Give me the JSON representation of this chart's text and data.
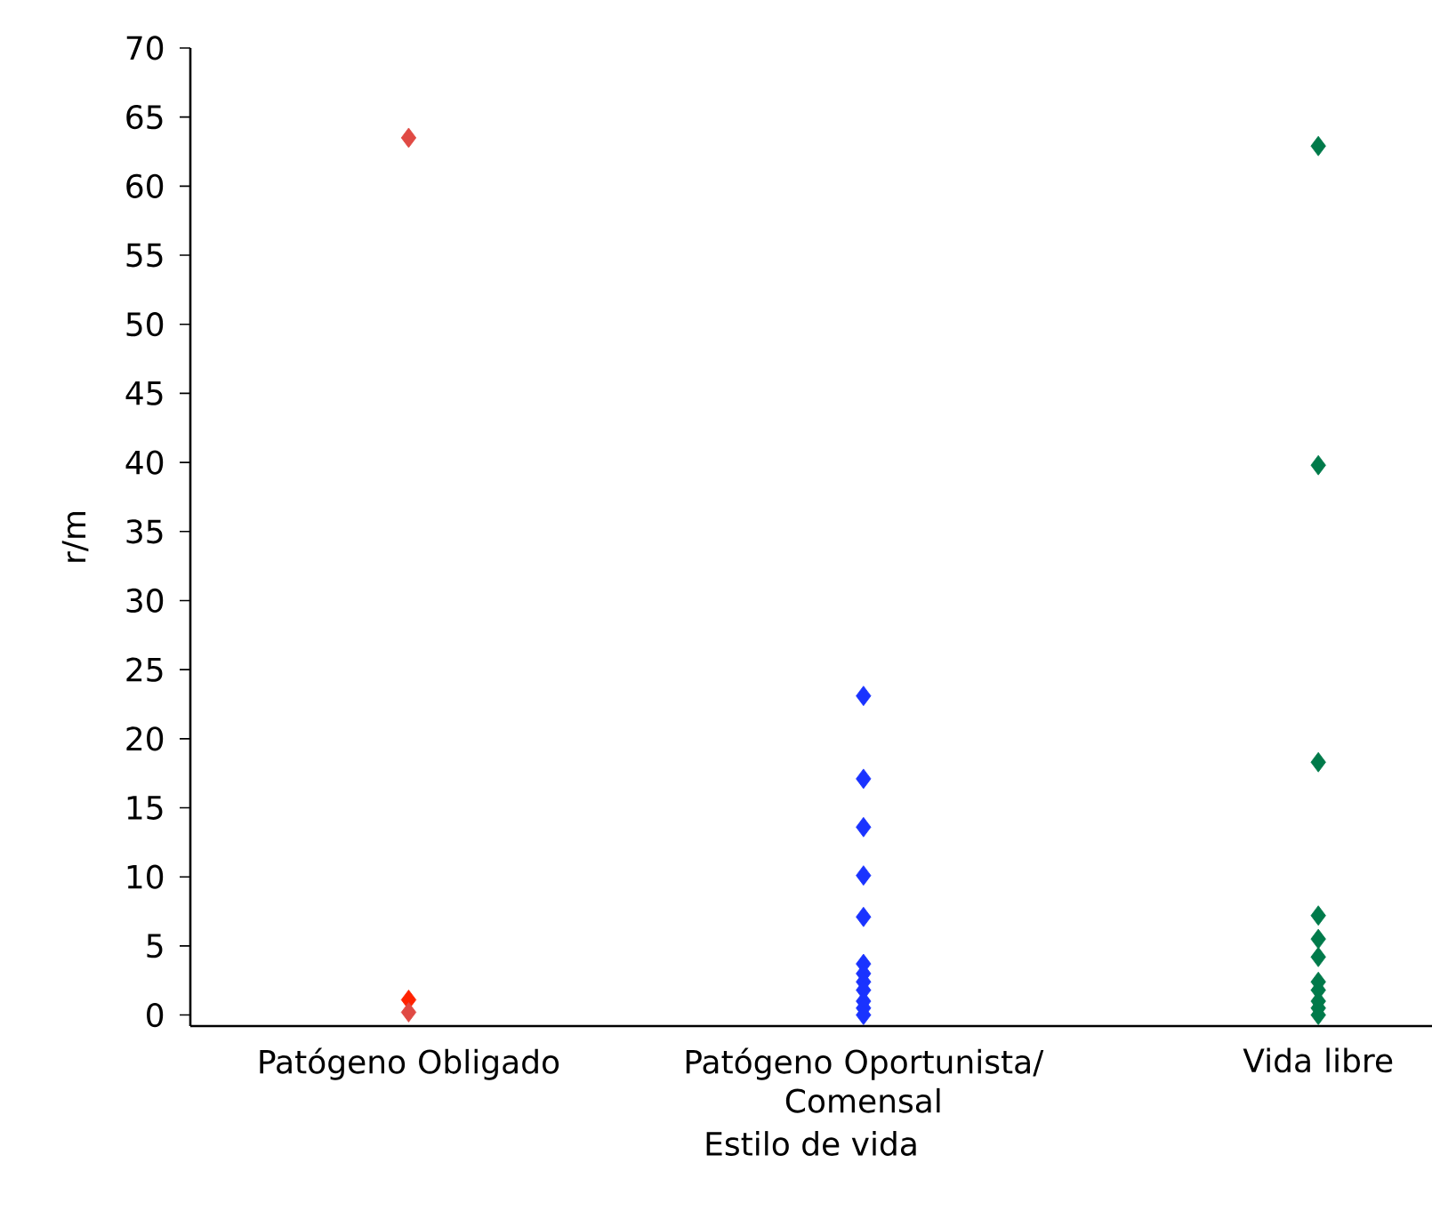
{
  "chart_data": {
    "type": "scatter",
    "xlabel": "Estilo de vida",
    "ylabel": "r/m",
    "categories": [
      "Patógeno Obligado",
      "Patógeno  Oportunista/ Comensal",
      "Vida libre"
    ],
    "series": [
      {
        "x": [
          "Patógeno Obligado",
          "Patógeno Obligado",
          "Patógeno Obligado",
          "Patógeno Obligado",
          "Patógeno Obligado"
        ],
        "values": [
          63.5,
          1.1,
          null,
          null,
          0.2
        ],
        "colors": [
          "#e04a44",
          "#ff2200",
          "#ff2200",
          "#e04a44",
          "#e04a44"
        ]
      },
      {
        "x": [
          "Patógeno  Oportunista/ Comensal",
          "Patógeno  Oportunista/ Comensal",
          "Patógeno  Oportunista/ Comensal",
          "Patógeno  Oportunista/ Comensal",
          "Patógeno  Oportunista/ Comensal",
          "Patógeno  Oportunista/ Comensal",
          "Patógeno  Oportunista/ Comensal",
          "Patógeno  Oportunista/ Comensal",
          "Patógeno  Oportunista/ Comensal",
          "Patógeno  Oportunista/ Comensal",
          "Patógeno  Oportunista/ Comensal",
          "Patógeno  Oportunista/ Comensal"
        ],
        "values": [
          23.1,
          17.1,
          13.6,
          10.1,
          7.1,
          3.7,
          3.0,
          2.4,
          1.8,
          1.0,
          0.5,
          0
        ],
        "color": "#1a33ff"
      },
      {
        "x": [
          "Vida libre",
          "Vida libre",
          "Vida libre",
          "Vida libre",
          "Vida libre",
          "Vida libre",
          "Vida libre",
          "Vida libre",
          "Vida libre",
          "Vida libre",
          "Vida libre"
        ],
        "values": [
          62.9,
          39.8,
          18.3,
          7.2,
          5.5,
          4.2,
          2.4,
          1.8,
          1.0,
          0.5,
          0
        ],
        "color": "#007a4a"
      }
    ],
    "ylim": [
      -0.8,
      70
    ],
    "yticks": [
      0,
      5,
      10,
      15,
      20,
      25,
      30,
      35,
      40,
      45,
      50,
      55,
      60,
      65,
      70
    ],
    "marker": "diamond",
    "grid": false
  }
}
